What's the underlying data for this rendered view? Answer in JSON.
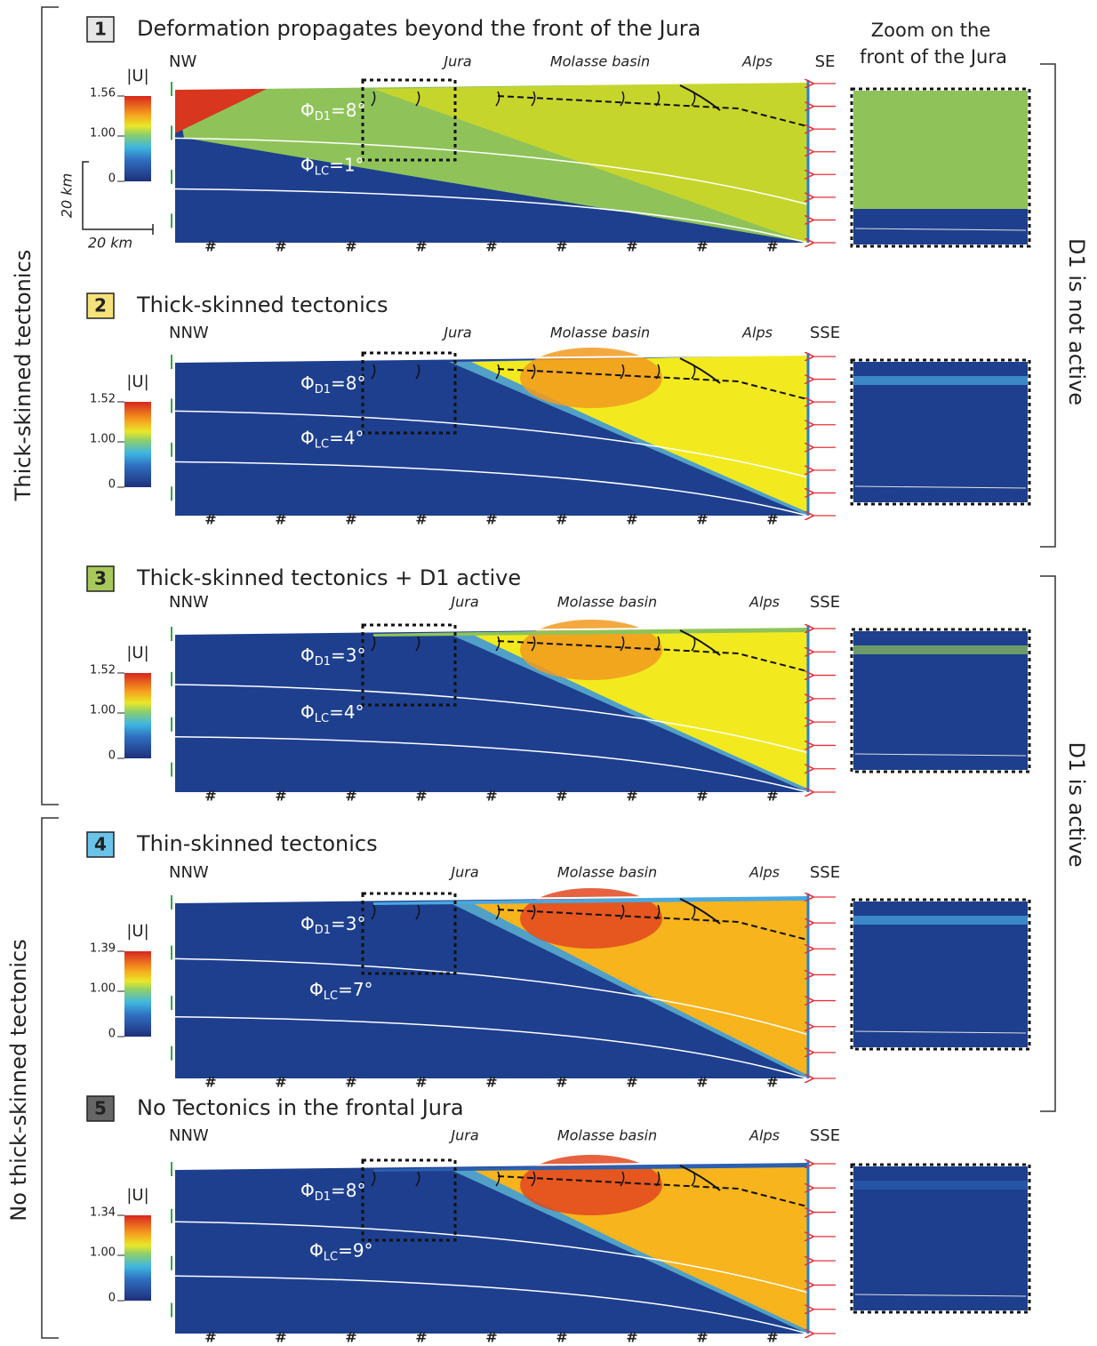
{
  "side_labels": {
    "thick": "Thick-skinned tectonics",
    "thin": "No thick-skinned tectonics",
    "not_active": "D1 is not active",
    "active": "D1 is active"
  },
  "zoom_title": [
    "Zoom on the",
    "front of the Jura"
  ],
  "scale": {
    "vertical": "20 km",
    "horizontal": "20 km"
  },
  "panels": [
    {
      "number": "1",
      "title": "Deformation propagates beyond the front of the Jura",
      "left": "NW",
      "right": "SE",
      "regions": [
        "Jura",
        "Molasse basin",
        "Alps"
      ],
      "colorbar": {
        "label": "|U|",
        "ticks": [
          "1.56",
          "1.00",
          "0"
        ]
      },
      "phi_d1": [
        "Φ",
        "D1",
        "=8°"
      ],
      "phi_lc": [
        "Φ",
        "LC",
        "=1°"
      ]
    },
    {
      "number": "2",
      "title": "Thick-skinned tectonics",
      "left": "NNW",
      "right": "SSE",
      "regions": [
        "Jura",
        "Molasse basin",
        "Alps"
      ],
      "colorbar": {
        "label": "|U|",
        "ticks": [
          "1.52",
          "1.00",
          "0"
        ]
      },
      "phi_d1": [
        "Φ",
        "D1",
        "=8°"
      ],
      "phi_lc": [
        "Φ",
        "LC",
        "=4°"
      ]
    },
    {
      "number": "3",
      "title": "Thick-skinned tectonics + D1 active",
      "left": "NNW",
      "right": "SSE",
      "regions": [
        "Jura",
        "Molasse basin",
        "Alps"
      ],
      "colorbar": {
        "label": "|U|",
        "ticks": [
          "1.52",
          "1.00",
          "0"
        ]
      },
      "phi_d1": [
        "Φ",
        "D1",
        "=3°"
      ],
      "phi_lc": [
        "Φ",
        "LC",
        "=4°"
      ]
    },
    {
      "number": "4",
      "title": "Thin-skinned tectonics",
      "left": "NNW",
      "right": "SSE",
      "regions": [
        "Jura",
        "Molasse basin",
        "Alps"
      ],
      "colorbar": {
        "label": "|U|",
        "ticks": [
          "1.39",
          "1.00",
          "0"
        ]
      },
      "phi_d1": [
        "Φ",
        "D1",
        "=3°"
      ],
      "phi_lc": [
        "Φ",
        "LC",
        "=7°"
      ]
    },
    {
      "number": "5",
      "title": "No Tectonics in the frontal Jura",
      "left": "NNW",
      "right": "SSE",
      "regions": [
        "Jura",
        "Molasse basin",
        "Alps"
      ],
      "colorbar": {
        "label": "|U|",
        "ticks": [
          "1.34",
          "1.00",
          "0"
        ]
      },
      "phi_d1": [
        "Φ",
        "D1",
        "=8°"
      ],
      "phi_lc": [
        "Φ",
        "LC",
        "=9°"
      ]
    }
  ]
}
